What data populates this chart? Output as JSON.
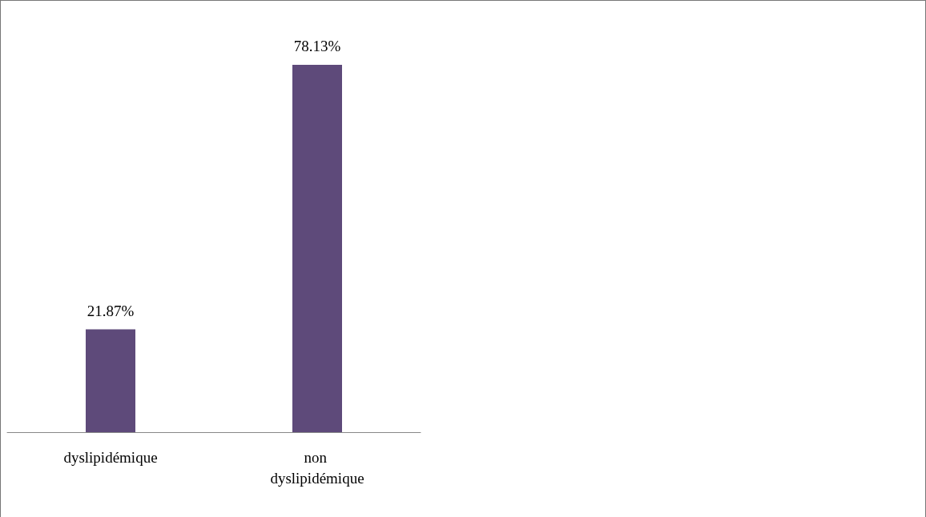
{
  "chart_data": {
    "type": "bar",
    "categories": [
      "dyslipidémique",
      "non dyslipidémique"
    ],
    "values": [
      21.87,
      78.13
    ],
    "value_labels": [
      "21.87%",
      "78.13%"
    ],
    "color": "#5e4a7a"
  }
}
